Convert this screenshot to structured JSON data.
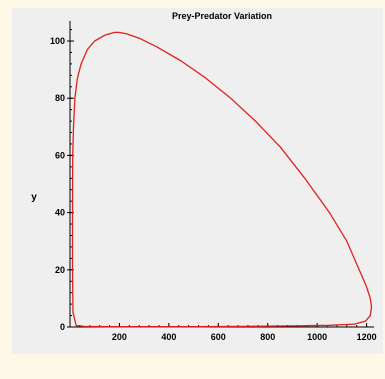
{
  "chart_data": {
    "type": "line",
    "title": "Prey-Predator Variation",
    "xlabel": "",
    "ylabel": "y",
    "xlim": [
      0,
      1230
    ],
    "ylim": [
      0,
      107
    ],
    "xticks": [
      "200",
      "400",
      "600",
      "800",
      "1000",
      "1200"
    ],
    "yticks": [
      "0",
      "20",
      "40",
      "60",
      "80",
      "100"
    ],
    "grid": false,
    "series": [
      {
        "color": "#e02020",
        "x": [
          10,
          10,
          11,
          14,
          20,
          30,
          45,
          70,
          100,
          140,
          180,
          200,
          230,
          280,
          350,
          450,
          550,
          650,
          750,
          850,
          950,
          1050,
          1120,
          1170,
          1200,
          1215,
          1220,
          1215,
          1195,
          1150,
          1050,
          900,
          700,
          500,
          300,
          150,
          60,
          25,
          12,
          10
        ],
        "y": [
          20,
          40,
          60,
          70,
          80,
          87,
          92,
          97,
          100,
          102,
          103,
          103,
          102.5,
          101,
          98,
          93,
          87,
          80,
          72,
          63,
          52,
          40,
          30,
          20,
          14,
          10,
          7,
          4,
          2,
          1,
          0.6,
          0.4,
          0.2,
          0.1,
          0.1,
          0.1,
          0.2,
          0.5,
          5,
          20
        ]
      }
    ]
  }
}
